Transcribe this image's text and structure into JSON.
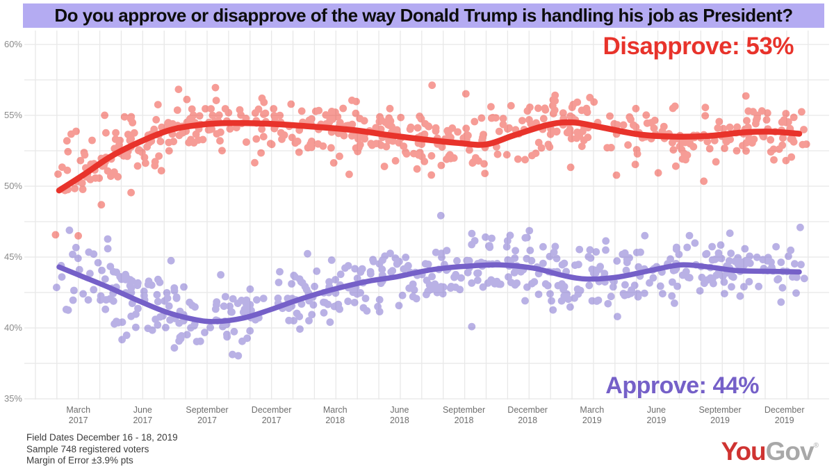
{
  "title": "Do you approve or disapprove of the way Donald Trump is handling his job as President?",
  "annotations": {
    "disapprove_label": "Disapprove: 53%",
    "approve_label": "Approve: 44%"
  },
  "footer": {
    "line1": "Field Dates December 16 - 18, 2019",
    "line2": "Sample 748 registered voters",
    "line3": "Margin of Error ±3.9% pts"
  },
  "logo": {
    "part1": "You",
    "part2": "Gov",
    "mark": "®"
  },
  "colors": {
    "title_background": "#b4abf2",
    "disapprove": "#e8332b",
    "disapprove_point": "#ee4237",
    "approve": "#7560c8",
    "approve_point": "#7b6bce",
    "grid": "#e8e8e8",
    "y_tick_text": "#8a8a8a",
    "x_tick_text": "#6e6e6e",
    "footer_text": "#3a3a3a",
    "logo_red": "#cf3331",
    "logo_gray": "#a8a8a8"
  },
  "chart_data": {
    "type": "scatter",
    "title": "Do you approve or disapprove of the way Donald Trump is handling his job as President?",
    "grid": true,
    "legend_position": "end-labels",
    "y_axis": {
      "unit": "%",
      "min": 35,
      "max": 60,
      "major_step": 5,
      "minor_step": 2.5,
      "ticks": [
        {
          "value": 60,
          "label": "60%"
        },
        {
          "value": 55,
          "label": "55%"
        },
        {
          "value": 50,
          "label": "50%"
        },
        {
          "value": 45,
          "label": "45%"
        },
        {
          "value": 40,
          "label": "40%"
        },
        {
          "value": 35,
          "label": "35%"
        }
      ]
    },
    "x_axis": {
      "months_per_gridline": 1,
      "ticks": [
        {
          "month": "March",
          "year": "2017",
          "t": 0.026
        },
        {
          "month": "June",
          "year": "2017",
          "t": 0.113
        },
        {
          "month": "September",
          "year": "2017",
          "t": 0.2
        },
        {
          "month": "December",
          "year": "2017",
          "t": 0.287
        },
        {
          "month": "March",
          "year": "2018",
          "t": 0.373
        },
        {
          "month": "June",
          "year": "2018",
          "t": 0.46
        },
        {
          "month": "September",
          "year": "2018",
          "t": 0.547
        },
        {
          "month": "December",
          "year": "2018",
          "t": 0.633
        },
        {
          "month": "March",
          "year": "2019",
          "t": 0.72
        },
        {
          "month": "June",
          "year": "2019",
          "t": 0.807
        },
        {
          "month": "September",
          "year": "2019",
          "t": 0.893
        },
        {
          "month": "December",
          "year": "2019",
          "t": 0.98
        }
      ]
    },
    "series": [
      {
        "name": "Disapprove",
        "final_value": 53,
        "line_color": "#e8332b",
        "point_color": "#ee4237",
        "trend": [
          [
            0.0,
            49.7
          ],
          [
            0.033,
            50.8
          ],
          [
            0.07,
            52.1
          ],
          [
            0.108,
            53.1
          ],
          [
            0.146,
            53.9
          ],
          [
            0.178,
            54.25
          ],
          [
            0.221,
            54.45
          ],
          [
            0.286,
            54.4
          ],
          [
            0.343,
            54.2
          ],
          [
            0.399,
            53.95
          ],
          [
            0.446,
            53.6
          ],
          [
            0.493,
            53.3
          ],
          [
            0.54,
            53.05
          ],
          [
            0.577,
            52.95
          ],
          [
            0.615,
            53.6
          ],
          [
            0.662,
            54.35
          ],
          [
            0.695,
            54.5
          ],
          [
            0.733,
            54.15
          ],
          [
            0.784,
            53.65
          ],
          [
            0.831,
            53.5
          ],
          [
            0.878,
            53.55
          ],
          [
            0.925,
            53.8
          ],
          [
            0.962,
            53.85
          ],
          [
            1.0,
            53.7
          ]
        ],
        "scatter": {
          "seed": 1337,
          "count": 545,
          "sd": 1.1,
          "clip": [
            46.5,
            59.3
          ]
        }
      },
      {
        "name": "Approve",
        "final_value": 44,
        "line_color": "#7560c8",
        "point_color": "#7b6bce",
        "trend": [
          [
            0.0,
            44.3
          ],
          [
            0.033,
            43.6
          ],
          [
            0.07,
            42.8
          ],
          [
            0.108,
            41.9
          ],
          [
            0.146,
            41.1
          ],
          [
            0.183,
            40.6
          ],
          [
            0.211,
            40.45
          ],
          [
            0.249,
            40.7
          ],
          [
            0.286,
            41.3
          ],
          [
            0.324,
            42.0
          ],
          [
            0.369,
            42.7
          ],
          [
            0.418,
            43.3
          ],
          [
            0.455,
            43.6
          ],
          [
            0.502,
            44.1
          ],
          [
            0.549,
            44.35
          ],
          [
            0.596,
            44.45
          ],
          [
            0.643,
            44.2
          ],
          [
            0.681,
            43.7
          ],
          [
            0.714,
            43.45
          ],
          [
            0.756,
            43.6
          ],
          [
            0.803,
            44.1
          ],
          [
            0.84,
            44.45
          ],
          [
            0.878,
            44.3
          ],
          [
            0.915,
            44.05
          ],
          [
            0.953,
            44.0
          ],
          [
            1.0,
            43.95
          ]
        ],
        "scatter": {
          "seed": 9241,
          "count": 545,
          "sd": 1.22,
          "clip": [
            36.4,
            48.4
          ]
        }
      }
    ]
  }
}
